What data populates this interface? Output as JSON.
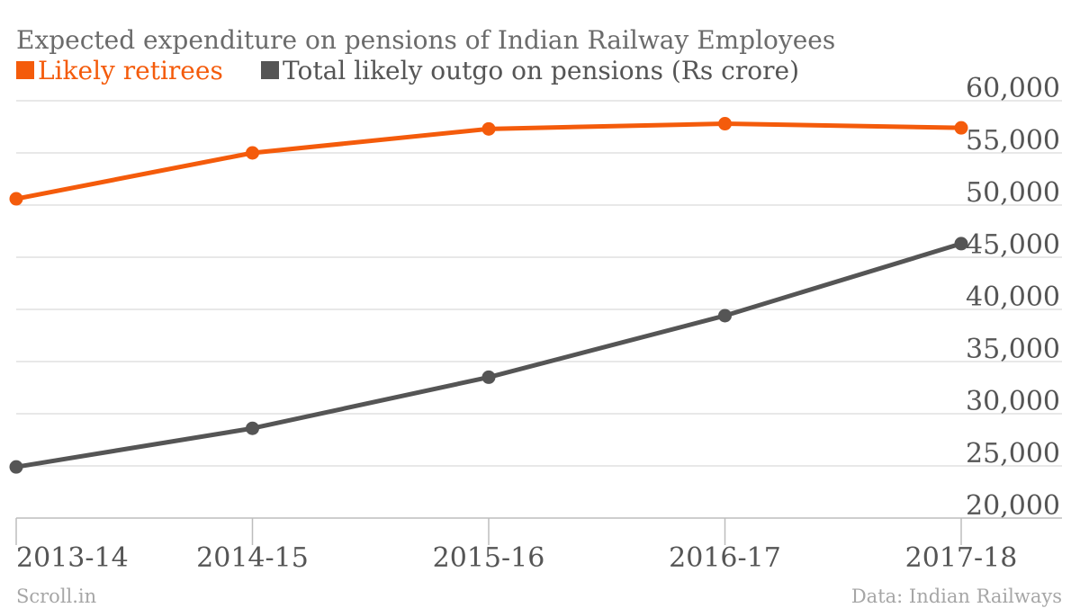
{
  "chart_data": {
    "type": "line",
    "title": "Expected expenditure on pensions of Indian Railway Employees",
    "categories": [
      "2013-14",
      "2014-15",
      "2015-16",
      "2016-17",
      "2017-18"
    ],
    "series": [
      {
        "name": "Likely retirees",
        "color": "#f45b0b",
        "values": [
          50600,
          55000,
          57300,
          57800,
          57400
        ]
      },
      {
        "name": "Total likely outgo on pensions (Rs crore)",
        "color": "#555555",
        "values": [
          24900,
          28600,
          33500,
          39400,
          46300
        ]
      }
    ],
    "yticks": [
      "20,000",
      "25,000",
      "30,000",
      "35,000",
      "40,000",
      "45,000",
      "50,000",
      "55,000",
      "60,000"
    ],
    "ylim": [
      20000,
      60000
    ],
    "grid": true,
    "legend_position": "top-left",
    "source": "Data: Indian Railways",
    "credit": "Scroll.in"
  }
}
